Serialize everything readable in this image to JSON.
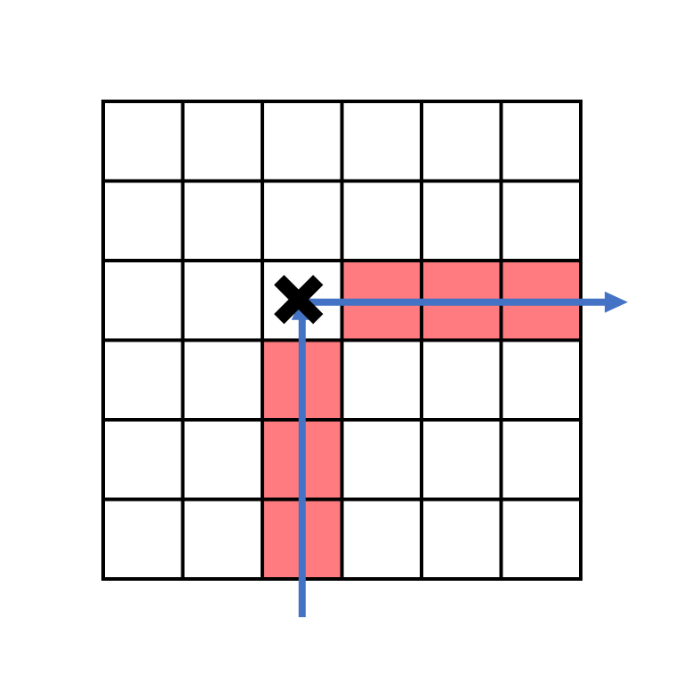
{
  "grid": {
    "rows": 6,
    "cols": 6,
    "line_color": "#000000",
    "cell_fill": "#ffffff"
  },
  "highlight": {
    "color": "#ff7b7f",
    "cells": [
      {
        "row": 2,
        "col": 3
      },
      {
        "row": 2,
        "col": 4
      },
      {
        "row": 2,
        "col": 5
      },
      {
        "row": 3,
        "col": 2
      },
      {
        "row": 4,
        "col": 2
      },
      {
        "row": 5,
        "col": 2
      }
    ]
  },
  "marker": {
    "icon": "x-mark-icon",
    "row": 2,
    "col": 2,
    "color": "#000000"
  },
  "arrows": {
    "color": "#4472c4",
    "items": [
      {
        "name": "horizontal-arrow",
        "direction": "right",
        "row": 2,
        "from_col": 2
      },
      {
        "name": "vertical-arrow",
        "direction": "up",
        "col": 2,
        "from_row": 6
      }
    ]
  }
}
